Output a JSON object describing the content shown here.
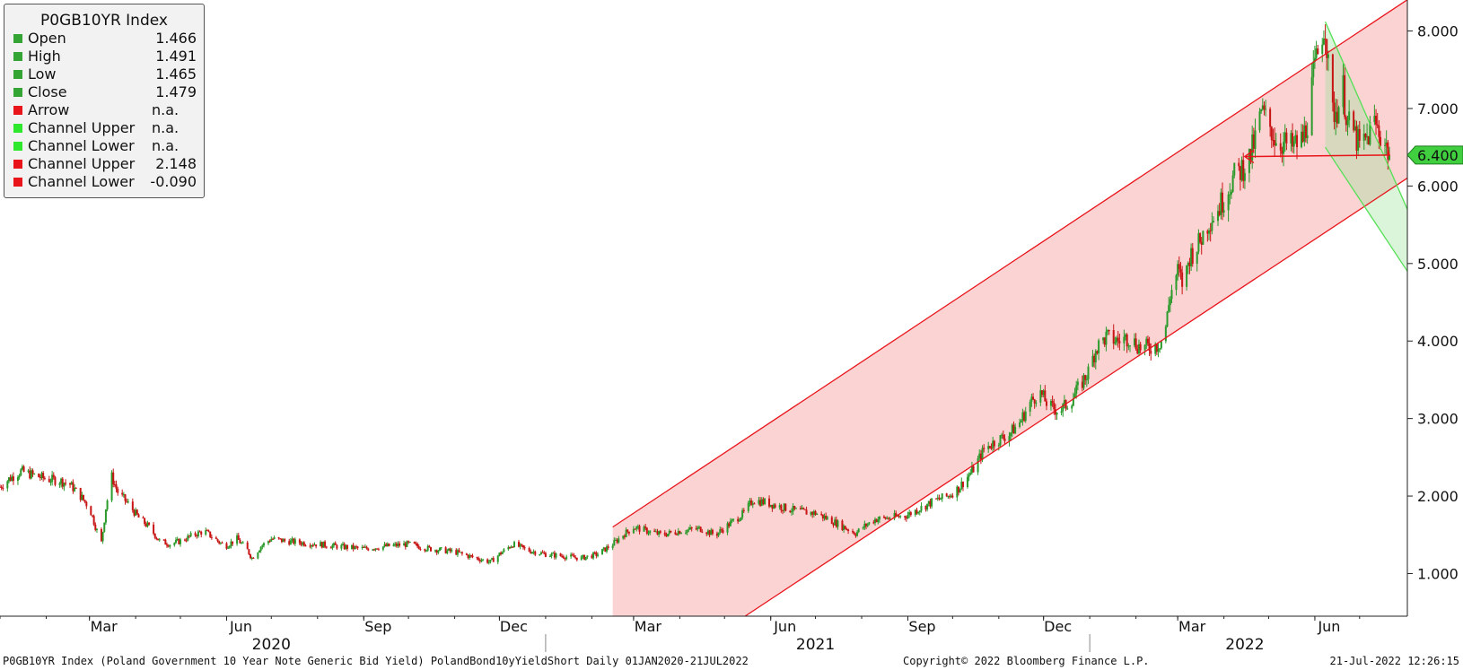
{
  "legend": {
    "title": "P0GB10YR Index",
    "rows": [
      {
        "name": "Open",
        "value": "1.466",
        "color": "#34a534"
      },
      {
        "name": "High",
        "value": "1.491",
        "color": "#34a534"
      },
      {
        "name": "Low",
        "value": "1.465",
        "color": "#34a534"
      },
      {
        "name": "Close",
        "value": "1.479",
        "color": "#34a534"
      },
      {
        "name": "Arrow",
        "value": "n.a.",
        "color": "#e8141a"
      },
      {
        "name": "Channel Upper",
        "value": "n.a.",
        "color": "#2ee82e"
      },
      {
        "name": "Channel Lower",
        "value": "n.a.",
        "color": "#2ee82e"
      },
      {
        "name": "Channel Upper",
        "value": "2.148",
        "color": "#e8141a"
      },
      {
        "name": "Channel Lower",
        "value": "-0.090",
        "color": "#e8141a"
      }
    ]
  },
  "footer": {
    "left": "P0GB10YR Index (Poland Government 10 Year Note Generic Bid Yield) PolandBond10yYieldShort  Daily 01JAN2020-21JUL2022",
    "copyright": "Copyright© 2022 Bloomberg Finance L.P.",
    "timestamp": "21-Jul-2022 12:26:15"
  },
  "last_price_label": "6.400",
  "colors": {
    "up": "#2a9a2a",
    "down": "#c81414",
    "channel_red_fill": "#fbd3d3",
    "channel_red_line": "#e8141a",
    "channel_green_line": "#55e055",
    "last_price_bg": "#3fcf3f"
  },
  "chart_data": {
    "type": "candlestick",
    "title": "P0GB10YR Index",
    "x_range": [
      "2020-01-01",
      "2022-07-21"
    ],
    "ylim": [
      0.45,
      8.4
    ],
    "y_ticks": [
      1.0,
      2.0,
      3.0,
      4.0,
      5.0,
      6.0,
      7.0,
      8.0
    ],
    "y_tick_labels": [
      "1.000",
      "2.000",
      "3.000",
      "4.000",
      "5.000",
      "6.000",
      "7.000",
      "8.000"
    ],
    "x_ticks": [
      {
        "date": "2020-03-01",
        "label": "Mar"
      },
      {
        "date": "2020-06-01",
        "label": "Jun"
      },
      {
        "date": "2020-09-01",
        "label": "Sep"
      },
      {
        "date": "2020-12-01",
        "label": "Dec"
      },
      {
        "date": "2021-03-01",
        "label": "Mar"
      },
      {
        "date": "2021-06-01",
        "label": "Jun"
      },
      {
        "date": "2021-09-01",
        "label": "Sep"
      },
      {
        "date": "2021-12-01",
        "label": "Dec"
      },
      {
        "date": "2022-03-01",
        "label": "Mar"
      },
      {
        "date": "2022-06-01",
        "label": "Jun"
      }
    ],
    "years": [
      {
        "date": "2020-07-01",
        "label": "2020"
      },
      {
        "date": "2021-07-01",
        "label": "2021"
      },
      {
        "date": "2022-04-15",
        "label": "2022"
      }
    ],
    "year_dividers": [
      "2021-01-01",
      "2022-01-01"
    ],
    "close_series": [
      [
        "2020-01-01",
        2.12
      ],
      [
        "2020-01-07",
        2.22
      ],
      [
        "2020-01-15",
        2.32
      ],
      [
        "2020-01-22",
        2.28
      ],
      [
        "2020-02-01",
        2.22
      ],
      [
        "2020-02-10",
        2.2
      ],
      [
        "2020-02-17",
        2.15
      ],
      [
        "2020-02-24",
        2.0
      ],
      [
        "2020-03-01",
        1.85
      ],
      [
        "2020-03-06",
        1.55
      ],
      [
        "2020-03-09",
        1.4
      ],
      [
        "2020-03-12",
        1.85
      ],
      [
        "2020-03-16",
        2.25
      ],
      [
        "2020-03-20",
        2.05
      ],
      [
        "2020-03-27",
        1.9
      ],
      [
        "2020-04-03",
        1.72
      ],
      [
        "2020-04-10",
        1.6
      ],
      [
        "2020-04-17",
        1.42
      ],
      [
        "2020-04-24",
        1.38
      ],
      [
        "2020-05-01",
        1.42
      ],
      [
        "2020-05-10",
        1.5
      ],
      [
        "2020-05-17",
        1.55
      ],
      [
        "2020-05-24",
        1.45
      ],
      [
        "2020-05-31",
        1.35
      ],
      [
        "2020-06-08",
        1.45
      ],
      [
        "2020-06-15",
        1.3
      ],
      [
        "2020-06-18",
        1.2
      ],
      [
        "2020-06-24",
        1.35
      ],
      [
        "2020-07-01",
        1.45
      ],
      [
        "2020-07-10",
        1.42
      ],
      [
        "2020-07-20",
        1.4
      ],
      [
        "2020-08-01",
        1.38
      ],
      [
        "2020-08-15",
        1.35
      ],
      [
        "2020-09-01",
        1.32
      ],
      [
        "2020-09-15",
        1.35
      ],
      [
        "2020-10-01",
        1.38
      ],
      [
        "2020-10-15",
        1.32
      ],
      [
        "2020-11-01",
        1.28
      ],
      [
        "2020-11-15",
        1.2
      ],
      [
        "2020-11-25",
        1.15
      ],
      [
        "2020-12-01",
        1.25
      ],
      [
        "2020-12-10",
        1.38
      ],
      [
        "2020-12-20",
        1.3
      ],
      [
        "2021-01-01",
        1.25
      ],
      [
        "2021-01-15",
        1.22
      ],
      [
        "2021-01-25",
        1.2
      ],
      [
        "2021-02-05",
        1.25
      ],
      [
        "2021-02-15",
        1.38
      ],
      [
        "2021-02-22",
        1.5
      ],
      [
        "2021-03-01",
        1.6
      ],
      [
        "2021-03-10",
        1.55
      ],
      [
        "2021-03-20",
        1.5
      ],
      [
        "2021-04-01",
        1.55
      ],
      [
        "2021-04-15",
        1.58
      ],
      [
        "2021-04-25",
        1.5
      ],
      [
        "2021-05-05",
        1.65
      ],
      [
        "2021-05-14",
        1.78
      ],
      [
        "2021-05-20",
        1.95
      ],
      [
        "2021-05-28",
        1.92
      ],
      [
        "2021-06-10",
        1.85
      ],
      [
        "2021-06-20",
        1.8
      ],
      [
        "2021-07-01",
        1.78
      ],
      [
        "2021-07-10",
        1.7
      ],
      [
        "2021-07-20",
        1.6
      ],
      [
        "2021-07-28",
        1.52
      ],
      [
        "2021-08-02",
        1.6
      ],
      [
        "2021-08-10",
        1.7
      ],
      [
        "2021-08-20",
        1.72
      ],
      [
        "2021-08-31",
        1.75
      ],
      [
        "2021-09-10",
        1.85
      ],
      [
        "2021-09-20",
        1.95
      ],
      [
        "2021-09-28",
        2.0
      ],
      [
        "2021-10-05",
        2.1
      ],
      [
        "2021-10-15",
        2.35
      ],
      [
        "2021-10-22",
        2.6
      ],
      [
        "2021-10-29",
        2.7
      ],
      [
        "2021-11-08",
        2.8
      ],
      [
        "2021-11-15",
        2.95
      ],
      [
        "2021-11-22",
        3.2
      ],
      [
        "2021-11-28",
        3.35
      ],
      [
        "2021-12-05",
        3.15
      ],
      [
        "2021-12-12",
        3.1
      ],
      [
        "2021-12-20",
        3.25
      ],
      [
        "2021-12-31",
        3.6
      ],
      [
        "2022-01-05",
        3.9
      ],
      [
        "2022-01-12",
        4.05
      ],
      [
        "2022-01-20",
        4.0
      ],
      [
        "2022-01-27",
        4.05
      ],
      [
        "2022-02-05",
        3.9
      ],
      [
        "2022-02-15",
        3.95
      ],
      [
        "2022-02-20",
        4.05
      ],
      [
        "2022-02-24",
        4.6
      ],
      [
        "2022-03-01",
        4.9
      ],
      [
        "2022-03-05",
        4.7
      ],
      [
        "2022-03-09",
        5.1
      ],
      [
        "2022-03-15",
        5.25
      ],
      [
        "2022-03-22",
        5.55
      ],
      [
        "2022-03-28",
        5.7
      ],
      [
        "2022-04-01",
        5.85
      ],
      [
        "2022-04-07",
        6.1
      ],
      [
        "2022-04-12",
        6.2
      ],
      [
        "2022-04-18",
        6.35
      ],
      [
        "2022-04-22",
        6.6
      ],
      [
        "2022-04-26",
        6.95
      ],
      [
        "2022-05-01",
        6.8
      ],
      [
        "2022-05-06",
        6.6
      ],
      [
        "2022-05-11",
        6.55
      ],
      [
        "2022-05-17",
        6.5
      ],
      [
        "2022-05-24",
        6.6
      ],
      [
        "2022-05-27",
        6.85
      ],
      [
        "2022-05-31",
        7.4
      ],
      [
        "2022-06-03",
        7.7
      ],
      [
        "2022-06-06",
        8.0
      ],
      [
        "2022-06-08",
        8.12
      ],
      [
        "2022-06-10",
        7.5
      ],
      [
        "2022-06-13",
        6.95
      ],
      [
        "2022-06-16",
        7.0
      ],
      [
        "2022-06-20",
        7.25
      ],
      [
        "2022-06-23",
        6.8
      ],
      [
        "2022-06-27",
        6.7
      ],
      [
        "2022-07-01",
        6.5
      ],
      [
        "2022-07-06",
        6.6
      ],
      [
        "2022-07-10",
        6.85
      ],
      [
        "2022-07-14",
        6.7
      ],
      [
        "2022-07-18",
        6.55
      ],
      [
        "2022-07-21",
        6.4
      ]
    ],
    "last_value": 6.4,
    "overlays": {
      "red_channel": {
        "start": "2021-02-15",
        "upper": [
          [
            "2021-02-15",
            1.6
          ],
          [
            "2022-07-21",
            8.25
          ]
        ],
        "lower": [
          [
            "2021-02-15",
            -0.68
          ],
          [
            "2022-07-21",
            5.95
          ]
        ]
      },
      "green_channel": {
        "upper": [
          [
            "2022-06-08",
            8.12
          ],
          [
            "2022-07-21",
            5.95
          ]
        ],
        "lower": [
          [
            "2022-06-08",
            6.5
          ],
          [
            "2022-07-21",
            4.9
          ]
        ]
      },
      "arrow": {
        "from": [
          "2022-07-21",
          6.4
        ],
        "to": [
          "2022-04-15",
          6.38
        ],
        "mid": [
          "2022-07-19",
          6.55
        ]
      }
    },
    "grid": false,
    "legend_position": "top-left"
  }
}
